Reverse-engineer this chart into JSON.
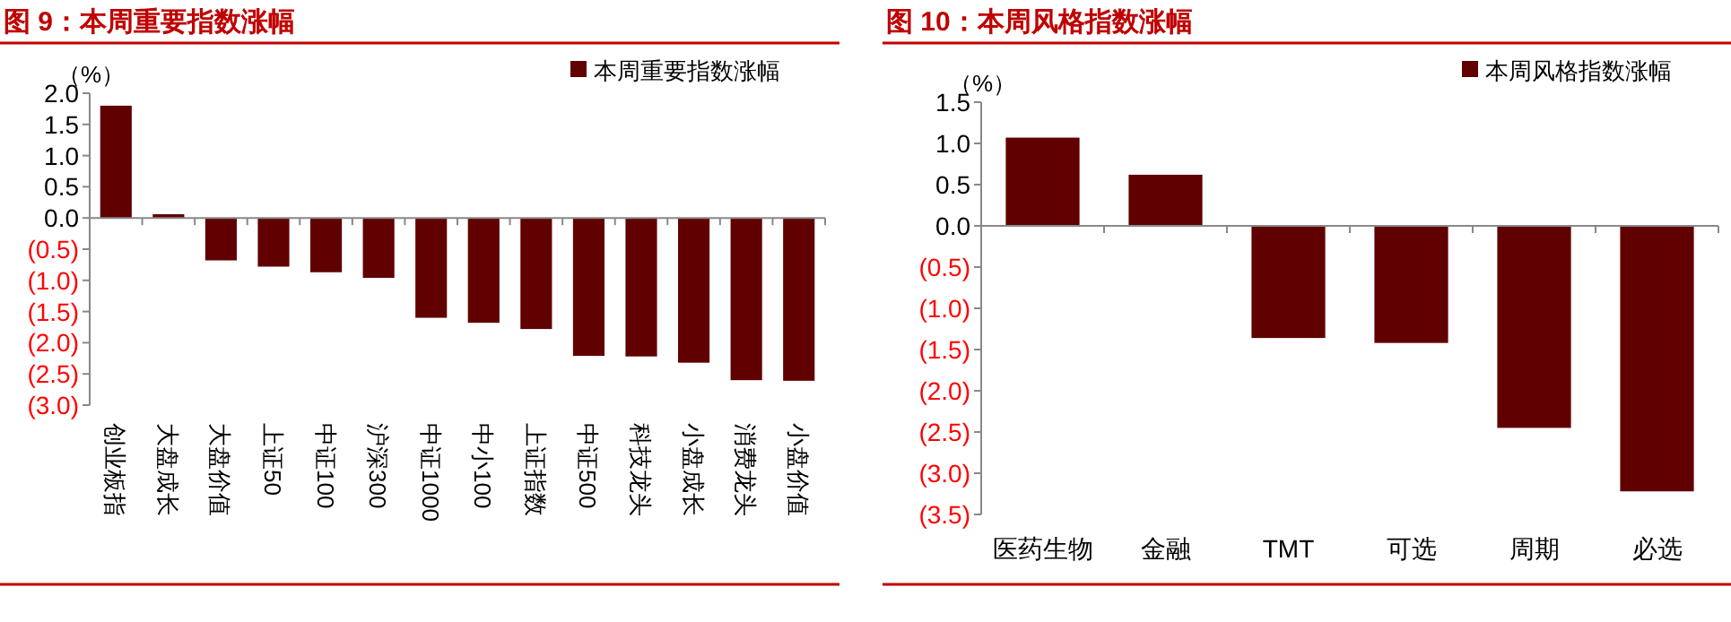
{
  "chart_data": [
    {
      "type": "bar",
      "title": "图 9：本周重要指数涨幅",
      "ylabel": "（%）",
      "categories": [
        "创业板指",
        "大盘成长",
        "大盘价值",
        "上证50",
        "中证100",
        "沪深300",
        "中证1000",
        "中小100",
        "上证指数",
        "中证500",
        "科技龙头",
        "小盘成长",
        "消费龙头",
        "小盘价值"
      ],
      "series": [
        {
          "name": "本周重要指数涨幅",
          "color": "#600000",
          "values": [
            1.8,
            0.06,
            -0.68,
            -0.78,
            -0.87,
            -0.96,
            -1.6,
            -1.68,
            -1.78,
            -2.21,
            -2.22,
            -2.32,
            -2.6,
            -2.61
          ]
        }
      ],
      "ylim": [
        -3.0,
        2.0
      ],
      "yticks": [
        {
          "value": -3.0,
          "label": "(3.0)"
        },
        {
          "value": -2.5,
          "label": "(2.5)"
        },
        {
          "value": -2.0,
          "label": "(2.0)"
        },
        {
          "value": -1.5,
          "label": "(1.5)"
        },
        {
          "value": -1.0,
          "label": "(1.0)"
        },
        {
          "value": -0.5,
          "label": "(0.5)"
        },
        {
          "value": 0,
          "label": "0.0"
        },
        {
          "value": 0.5,
          "label": "0.5"
        },
        {
          "value": 1.0,
          "label": "1.0"
        },
        {
          "value": 1.5,
          "label": "1.5"
        },
        {
          "value": 2.0,
          "label": "2.0"
        }
      ],
      "legend": "top right"
    },
    {
      "type": "bar",
      "title": "图 10：本周风格指数涨幅",
      "ylabel": "（%）",
      "categories": [
        "医药生物",
        "金融",
        "TMT",
        "可选",
        "周期",
        "必选"
      ],
      "series": [
        {
          "name": "本周风格指数涨幅",
          "color": "#600000",
          "values": [
            1.07,
            0.62,
            -1.36,
            -1.42,
            -2.45,
            -3.22
          ]
        }
      ],
      "ylim": [
        -3.5,
        1.5
      ],
      "yticks": [
        {
          "value": -3.5,
          "label": "(3.5)"
        },
        {
          "value": -3.0,
          "label": "(3.0)"
        },
        {
          "value": -2.5,
          "label": "(2.5)"
        },
        {
          "value": -2.0,
          "label": "(2.0)"
        },
        {
          "value": -1.5,
          "label": "(1.5)"
        },
        {
          "value": -1.0,
          "label": "(1.0)"
        },
        {
          "value": -0.5,
          "label": "(0.5)"
        },
        {
          "value": 0,
          "label": "0.0"
        },
        {
          "value": 0.5,
          "label": "0.5"
        },
        {
          "value": 1.0,
          "label": "1.0"
        },
        {
          "value": 1.5,
          "label": "1.5"
        }
      ],
      "legend": "top right"
    }
  ]
}
